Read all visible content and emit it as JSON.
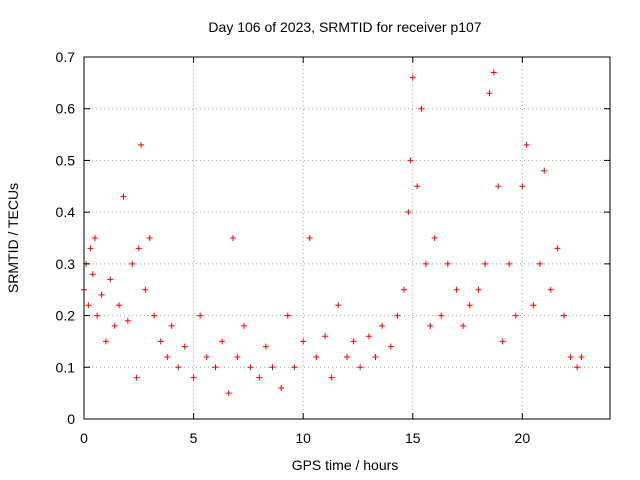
{
  "chart_data": {
    "type": "scatter",
    "title": "Day 106 of 2023, SRMTID for receiver p107",
    "xlabel": "GPS time / hours",
    "ylabel": "SRMTID / TECUs",
    "xlim": [
      0,
      24
    ],
    "ylim": [
      0,
      0.7
    ],
    "xticks": [
      0,
      5,
      10,
      15,
      20
    ],
    "yticks": [
      0,
      0.1,
      0.2,
      0.3,
      0.4,
      0.5,
      0.6,
      0.7
    ],
    "ytick_labels": [
      "0",
      "0.1",
      "0.2",
      "0.3",
      "0.4",
      "0.5",
      "0.6",
      "0.7"
    ],
    "grid": true,
    "marker": "+",
    "series_color": "#ff0000",
    "series": [
      {
        "name": "SRMTID",
        "x": [
          0.0,
          0.1,
          0.2,
          0.3,
          0.4,
          0.5,
          0.6,
          0.8,
          1.0,
          1.2,
          1.4,
          1.6,
          1.8,
          2.0,
          2.2,
          2.4,
          2.5,
          2.6,
          2.8,
          3.0,
          3.2,
          3.5,
          3.8,
          4.0,
          4.3,
          4.6,
          5.0,
          5.3,
          5.6,
          6.0,
          6.3,
          6.6,
          6.8,
          7.0,
          7.3,
          7.6,
          8.0,
          8.3,
          8.6,
          9.0,
          9.3,
          9.6,
          10.0,
          10.3,
          10.6,
          11.0,
          11.3,
          11.6,
          12.0,
          12.3,
          12.6,
          13.0,
          13.3,
          13.6,
          14.0,
          14.3,
          14.6,
          14.8,
          14.9,
          15.0,
          15.2,
          15.4,
          15.6,
          15.8,
          16.0,
          16.3,
          16.6,
          17.0,
          17.3,
          17.6,
          18.0,
          18.3,
          18.5,
          18.7,
          18.9,
          19.1,
          19.4,
          19.7,
          20.0,
          20.2,
          20.5,
          20.8,
          21.0,
          21.3,
          21.6,
          21.9,
          22.2,
          22.5,
          22.7
        ],
        "y": [
          0.25,
          0.3,
          0.22,
          0.33,
          0.28,
          0.35,
          0.2,
          0.24,
          0.15,
          0.27,
          0.18,
          0.22,
          0.43,
          0.19,
          0.3,
          0.08,
          0.33,
          0.53,
          0.25,
          0.35,
          0.2,
          0.15,
          0.12,
          0.18,
          0.1,
          0.14,
          0.08,
          0.2,
          0.12,
          0.1,
          0.15,
          0.05,
          0.35,
          0.12,
          0.18,
          0.1,
          0.08,
          0.14,
          0.1,
          0.06,
          0.2,
          0.1,
          0.15,
          0.35,
          0.12,
          0.16,
          0.08,
          0.22,
          0.12,
          0.15,
          0.1,
          0.16,
          0.12,
          0.18,
          0.14,
          0.2,
          0.25,
          0.4,
          0.5,
          0.66,
          0.45,
          0.6,
          0.3,
          0.18,
          0.35,
          0.2,
          0.3,
          0.25,
          0.18,
          0.22,
          0.25,
          0.3,
          0.63,
          0.67,
          0.45,
          0.15,
          0.3,
          0.2,
          0.45,
          0.53,
          0.22,
          0.3,
          0.48,
          0.25,
          0.33,
          0.2,
          0.12,
          0.1,
          0.12
        ]
      }
    ]
  }
}
